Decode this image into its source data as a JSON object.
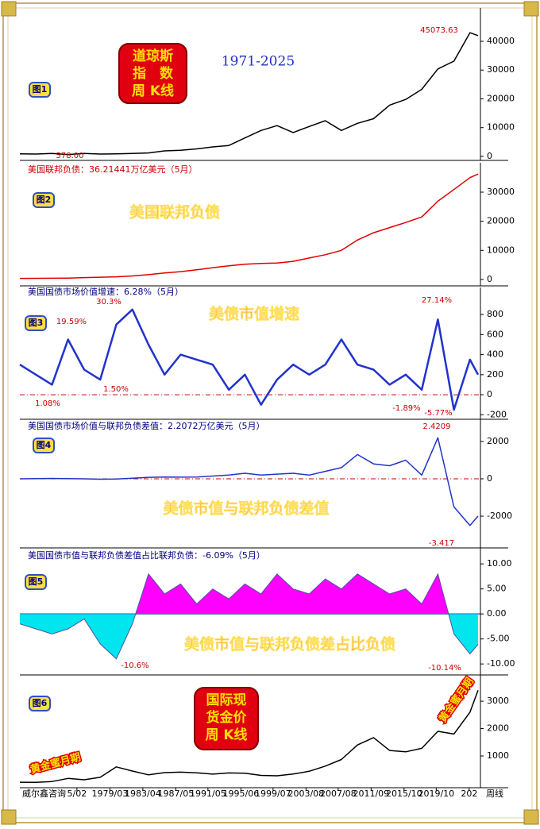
{
  "footer": {
    "source": "威尔鑫咨询",
    "period": "周线"
  },
  "chart_data": [
    {
      "type": "line",
      "panel_label": "图1",
      "title": [
        "道琼斯",
        "指　数",
        "周 K线"
      ],
      "subtitle": "1971-2025",
      "annotations": [
        "45073.63",
        "578.00"
      ],
      "color": "#000000",
      "x": [
        1968,
        1970,
        1972,
        1974,
        1976,
        1978,
        1980,
        1982,
        1984,
        1986,
        1988,
        1990,
        1992,
        1994,
        1996,
        1998,
        2000,
        2002,
        2004,
        2006,
        2008,
        2010,
        2012,
        2014,
        2016,
        2018,
        2020,
        2022,
        2024,
        2025
      ],
      "values": [
        900,
        800,
        1000,
        650,
        1000,
        820,
        900,
        1000,
        1200,
        1900,
        2100,
        2600,
        3300,
        3800,
        6400,
        9000,
        10700,
        8300,
        10400,
        12400,
        9000,
        11500,
        13100,
        17800,
        19800,
        23300,
        30400,
        33100,
        43000,
        42000
      ],
      "xlim": [
        1968,
        2025.3
      ],
      "ylim": [
        -1400,
        51600
      ],
      "yticks": [
        0,
        10000,
        20000,
        30000,
        40000
      ]
    },
    {
      "type": "line",
      "panel_label": "图2",
      "heading": "美国联邦负债：36.21441万亿美元（5月）",
      "label": "美国联邦负债",
      "color": "#e00000",
      "x": [
        1968,
        1970,
        1972,
        1974,
        1976,
        1978,
        1980,
        1982,
        1984,
        1986,
        1988,
        1990,
        1992,
        1994,
        1996,
        1998,
        2000,
        2002,
        2004,
        2006,
        2008,
        2010,
        2012,
        2014,
        2016,
        2018,
        2020,
        2022,
        2024,
        2025
      ],
      "values": [
        360,
        380,
        430,
        480,
        630,
        780,
        910,
        1200,
        1660,
        2210,
        2680,
        3320,
        4060,
        4690,
        5220,
        5530,
        5670,
        6230,
        7380,
        8500,
        10000,
        13560,
        16060,
        17820,
        19570,
        21500,
        26900,
        30900,
        35000,
        36214
      ],
      "xlim": [
        1968,
        2025.3
      ],
      "ylim": [
        -2200,
        40100
      ],
      "yticks": [
        0,
        10000,
        20000,
        30000
      ]
    },
    {
      "type": "line",
      "panel_label": "图3",
      "heading": "美国国债市场价值增速：6.28%（5月）",
      "label": "美债市值增速",
      "annotations": [
        "30.3%",
        "19.59%",
        "1.08%",
        "1.50%",
        "27.14%",
        "-1.89%",
        "-5.77%"
      ],
      "color": "#2233cc",
      "reference_line": 0,
      "reference_color": "#cc0000",
      "x": [
        1968,
        1970,
        1972,
        1974,
        1976,
        1978,
        1980,
        1982,
        1984,
        1986,
        1988,
        1990,
        1992,
        1994,
        1996,
        1998,
        2000,
        2002,
        2004,
        2006,
        2008,
        2010,
        2012,
        2014,
        2016,
        2018,
        2020,
        2022,
        2024,
        2025
      ],
      "values": [
        300,
        200,
        100,
        550,
        250,
        150,
        700,
        850,
        500,
        200,
        400,
        350,
        300,
        50,
        200,
        -100,
        150,
        300,
        200,
        300,
        550,
        300,
        250,
        100,
        200,
        50,
        750,
        -150,
        350,
        200
      ],
      "xlim": [
        1968,
        2025.3
      ],
      "ylim": [
        -245,
        1070
      ],
      "yticks": [
        -200,
        0,
        200,
        400,
        600,
        800
      ]
    },
    {
      "type": "line",
      "panel_label": "图4",
      "heading": "美国国债市场价值与联邦负债差值：2.2072万亿美元（5月）",
      "label": "美债市值与联邦负债差值",
      "annotations": [
        "2.4209",
        "-3.417"
      ],
      "color": "#2233cc",
      "reference_line": 0,
      "reference_color": "#cc0000",
      "x": [
        1968,
        1970,
        1972,
        1974,
        1976,
        1978,
        1980,
        1982,
        1984,
        1986,
        1988,
        1990,
        1992,
        1994,
        1996,
        1998,
        2000,
        2002,
        2004,
        2006,
        2008,
        2010,
        2012,
        2014,
        2016,
        2018,
        2020,
        2022,
        2024,
        2025
      ],
      "values": [
        0,
        10,
        20,
        10,
        0,
        -20,
        -10,
        30,
        80,
        100,
        90,
        100,
        150,
        200,
        300,
        200,
        250,
        300,
        200,
        400,
        600,
        1300,
        800,
        700,
        1000,
        200,
        2200,
        -1500,
        -2500,
        -2000
      ],
      "xlim": [
        1968,
        2025.3
      ],
      "ylim": [
        -3700,
        3190
      ],
      "yticks": [
        -2000,
        0,
        2000
      ]
    },
    {
      "type": "area",
      "panel_label": "图5",
      "heading": "美国国债市值与联邦负债差值占比联邦负债：-6.09%（5月）",
      "label": "美债市值与联邦负债差占比负债",
      "annotations": [
        "-10.6%",
        "-10.14%"
      ],
      "color": "#5050a0",
      "color_above": "#ff00ff",
      "color_below": "#00e5ee",
      "reference_line": 0,
      "reference_color": "#000080",
      "x": [
        1968,
        1970,
        1972,
        1974,
        1976,
        1978,
        1980,
        1982,
        1984,
        1986,
        1988,
        1990,
        1992,
        1994,
        1996,
        1998,
        2000,
        2002,
        2004,
        2006,
        2008,
        2010,
        2012,
        2014,
        2016,
        2018,
        2020,
        2022,
        2024,
        2025
      ],
      "values": [
        -2,
        -3,
        -4,
        -3,
        -1,
        -6,
        -9,
        -2,
        8,
        4,
        6,
        2,
        5,
        3,
        6,
        4,
        8,
        5,
        4,
        7,
        5,
        8,
        6,
        4,
        5,
        2,
        8,
        -4,
        -8,
        -6.09
      ],
      "xlim": [
        1968,
        2025.3
      ],
      "ylim": [
        -12.2,
        13.2
      ],
      "yticks": [
        {
          "value": -10,
          "label": "-10.00"
        },
        {
          "value": -5,
          "label": "-5.00"
        },
        {
          "value": 0,
          "label": "0.00"
        },
        {
          "value": 5,
          "label": "5.00"
        },
        {
          "value": 10,
          "label": "10.00"
        }
      ]
    },
    {
      "type": "line",
      "panel_label": "图6",
      "title": [
        "国际现",
        "货金价",
        "周 K线"
      ],
      "annotations": [
        "黄金蜜月期",
        "黄金蜜月期"
      ],
      "color": "#000000",
      "x": [
        1968,
        1970,
        1972,
        1974,
        1976,
        1978,
        1980,
        1982,
        1984,
        1986,
        1988,
        1990,
        1992,
        1994,
        1996,
        1998,
        2000,
        2002,
        2004,
        2006,
        2008,
        2010,
        2012,
        2014,
        2016,
        2018,
        2020,
        2022,
        2024,
        2025
      ],
      "values": [
        40,
        36,
        65,
        180,
        130,
        220,
        600,
        450,
        310,
        390,
        410,
        385,
        335,
        380,
        370,
        290,
        275,
        340,
        440,
        630,
        870,
        1400,
        1670,
        1200,
        1150,
        1280,
        1900,
        1800,
        2600,
        3400
      ],
      "xlim": [
        1968,
        2025.3
      ],
      "ylim": [
        -160,
        3960
      ],
      "yticks": [
        1000,
        2000,
        3000
      ],
      "xticks": [
        {
          "value": 1975.1,
          "label": "5/02"
        },
        {
          "value": 1979.2,
          "label": "1979/03"
        },
        {
          "value": 1983.3,
          "label": "1983/04"
        },
        {
          "value": 1987.4,
          "label": "1987/05"
        },
        {
          "value": 1991.4,
          "label": "1991/05"
        },
        {
          "value": 1995.5,
          "label": "1995/06"
        },
        {
          "value": 1999.5,
          "label": "1999/07"
        },
        {
          "value": 2003.6,
          "label": "2003/08"
        },
        {
          "value": 2007.6,
          "label": "2007/08"
        },
        {
          "value": 2011.7,
          "label": "2011/09"
        },
        {
          "value": 2015.8,
          "label": "2015/10"
        },
        {
          "value": 2019.8,
          "label": "2019/10"
        },
        {
          "value": 2023.9,
          "label": "202"
        }
      ]
    }
  ]
}
